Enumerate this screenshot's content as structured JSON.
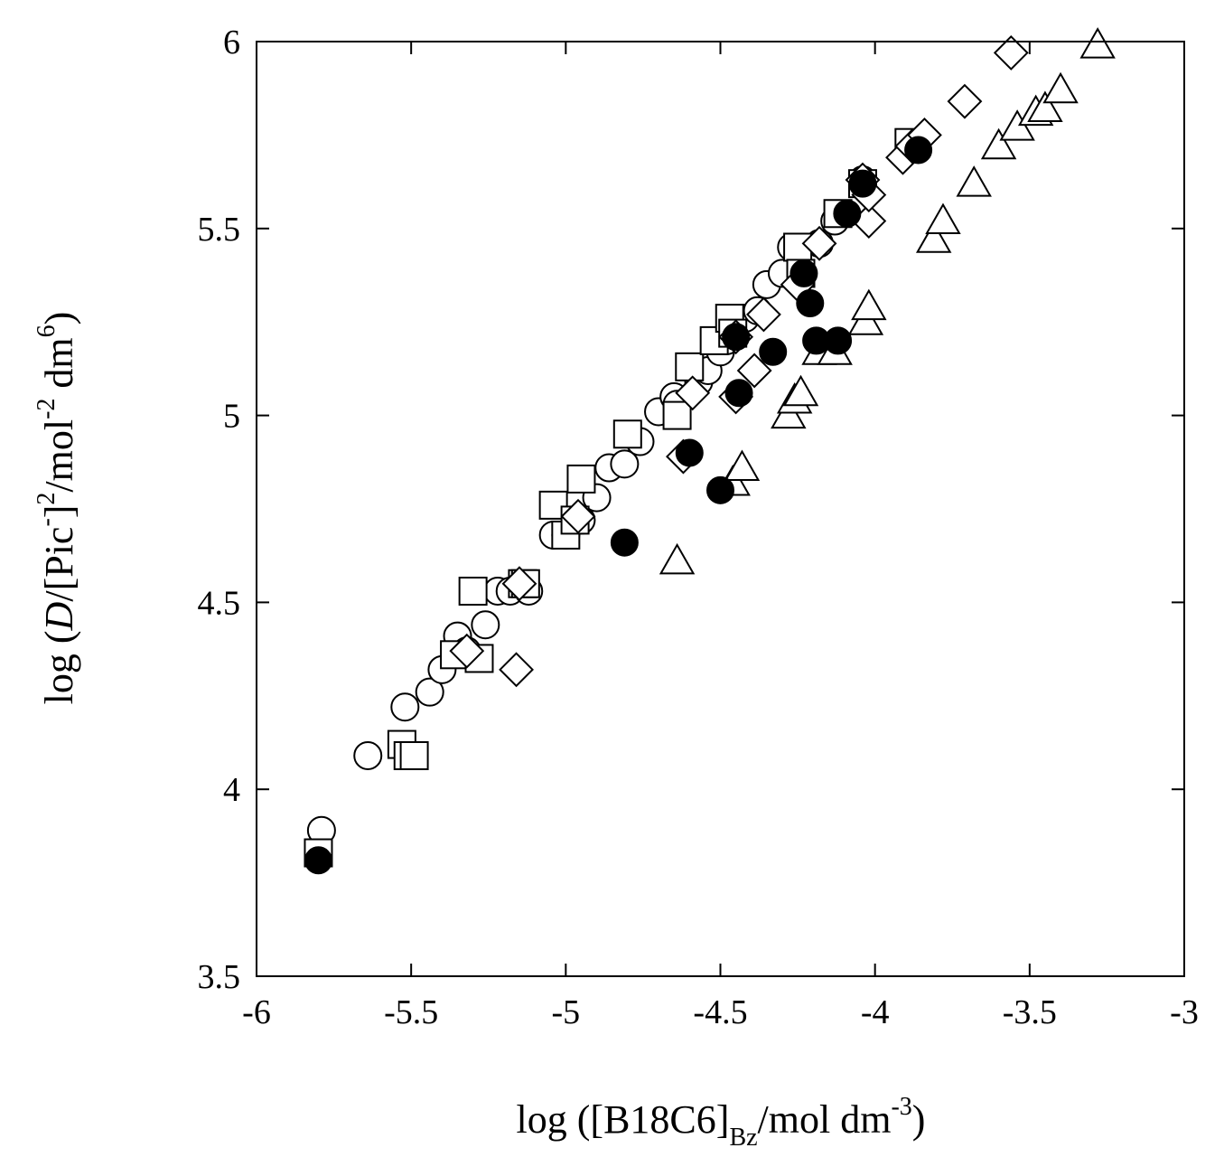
{
  "chart_data": {
    "type": "scatter",
    "title": "",
    "xlabel": {
      "prefix": "log ([B18C6]",
      "sub": "Bz",
      "middle": "/mol dm",
      "sup": "-3",
      "suffix": ")"
    },
    "ylabel": {
      "prefix": "log (",
      "italic": "D",
      "middle1": "/[Pic",
      "sup1": "-",
      "middle2": "]",
      "sup2": "2",
      "middle3": "/mol",
      "sup3": "-2",
      "middle4": " dm",
      "sup4": "6",
      "suffix": ")"
    },
    "xlim": [
      -6,
      -3
    ],
    "ylim": [
      3.5,
      6
    ],
    "xticks": [
      -6,
      -5.5,
      -5,
      -4.5,
      -4,
      -3.5,
      -3
    ],
    "xtick_labels": [
      "-6",
      "-5.5",
      "-5",
      "-4.5",
      "-4",
      "-3.5",
      "-3"
    ],
    "yticks": [
      3.5,
      4,
      4.5,
      5,
      5.5,
      6
    ],
    "ytick_labels": [
      "3.5",
      "4",
      "4.5",
      "5",
      "5.5",
      "6"
    ],
    "grid": false,
    "series": [
      {
        "marker": "open-circle",
        "points": [
          [
            -5.79,
            3.89
          ],
          [
            -5.64,
            4.09
          ],
          [
            -5.52,
            4.22
          ],
          [
            -5.44,
            4.26
          ],
          [
            -5.4,
            4.32
          ],
          [
            -5.35,
            4.41
          ],
          [
            -5.32,
            4.37
          ],
          [
            -5.26,
            4.44
          ],
          [
            -5.22,
            4.53
          ],
          [
            -5.18,
            4.53
          ],
          [
            -5.12,
            4.53
          ],
          [
            -5.04,
            4.68
          ],
          [
            -5.0,
            4.68
          ],
          [
            -4.95,
            4.72
          ],
          [
            -4.9,
            4.78
          ],
          [
            -4.86,
            4.86
          ],
          [
            -4.81,
            4.87
          ],
          [
            -4.76,
            4.93
          ],
          [
            -4.7,
            5.01
          ],
          [
            -4.65,
            5.05
          ],
          [
            -4.64,
            5.03
          ],
          [
            -4.57,
            5.09
          ],
          [
            -4.54,
            5.12
          ],
          [
            -4.5,
            5.17
          ],
          [
            -4.48,
            5.2
          ],
          [
            -4.42,
            5.26
          ],
          [
            -4.38,
            5.28
          ],
          [
            -4.35,
            5.35
          ],
          [
            -4.3,
            5.38
          ],
          [
            -4.27,
            5.45
          ],
          [
            -4.18,
            5.46
          ],
          [
            -4.13,
            5.52
          ],
          [
            -4.04,
            5.63
          ]
        ]
      },
      {
        "marker": "open-square",
        "points": [
          [
            -5.8,
            3.83
          ],
          [
            -5.53,
            4.12
          ],
          [
            -5.51,
            4.09
          ],
          [
            -5.49,
            4.09
          ],
          [
            -5.36,
            4.36
          ],
          [
            -5.3,
            4.53
          ],
          [
            -5.28,
            4.35
          ],
          [
            -5.14,
            4.55
          ],
          [
            -5.13,
            4.55
          ],
          [
            -5.04,
            4.76
          ],
          [
            -5.0,
            4.68
          ],
          [
            -4.97,
            4.72
          ],
          [
            -4.95,
            4.83
          ],
          [
            -4.8,
            4.95
          ],
          [
            -4.64,
            5.0
          ],
          [
            -4.6,
            5.13
          ],
          [
            -4.52,
            5.2
          ],
          [
            -4.47,
            5.26
          ],
          [
            -4.46,
            5.22
          ],
          [
            -4.25,
            5.45
          ],
          [
            -4.24,
            5.38
          ],
          [
            -4.12,
            5.54
          ],
          [
            -4.04,
            5.62
          ],
          [
            -3.89,
            5.73
          ]
        ]
      },
      {
        "marker": "open-diamond",
        "points": [
          [
            -5.32,
            4.37
          ],
          [
            -5.16,
            4.32
          ],
          [
            -5.15,
            4.55
          ],
          [
            -4.96,
            4.73
          ],
          [
            -4.62,
            4.89
          ],
          [
            -4.59,
            5.06
          ],
          [
            -4.45,
            5.05
          ],
          [
            -4.45,
            5.21
          ],
          [
            -4.39,
            5.12
          ],
          [
            -4.36,
            5.27
          ],
          [
            -4.25,
            5.35
          ],
          [
            -4.18,
            5.46
          ],
          [
            -4.02,
            5.52
          ],
          [
            -4.02,
            5.59
          ],
          [
            -4.04,
            5.63
          ],
          [
            -3.91,
            5.69
          ],
          [
            -3.88,
            5.72
          ],
          [
            -3.84,
            5.75
          ],
          [
            -3.71,
            5.84
          ],
          [
            -3.56,
            5.97
          ]
        ]
      },
      {
        "marker": "open-triangle",
        "points": [
          [
            -4.64,
            4.61
          ],
          [
            -4.46,
            4.82
          ],
          [
            -4.43,
            4.86
          ],
          [
            -4.28,
            5.0
          ],
          [
            -4.26,
            5.04
          ],
          [
            -4.24,
            5.06
          ],
          [
            -4.18,
            5.17
          ],
          [
            -4.13,
            5.17
          ],
          [
            -4.03,
            5.25
          ],
          [
            -4.02,
            5.29
          ],
          [
            -3.81,
            5.47
          ],
          [
            -3.78,
            5.52
          ],
          [
            -3.68,
            5.62
          ],
          [
            -3.6,
            5.72
          ],
          [
            -3.54,
            5.77
          ],
          [
            -3.48,
            5.81
          ],
          [
            -3.45,
            5.82
          ],
          [
            -3.4,
            5.87
          ],
          [
            -3.28,
            5.99
          ]
        ]
      },
      {
        "marker": "filled-circle",
        "points": [
          [
            -5.8,
            3.81
          ],
          [
            -4.81,
            4.66
          ],
          [
            -4.5,
            4.8
          ],
          [
            -4.6,
            4.9
          ],
          [
            -4.44,
            5.06
          ],
          [
            -4.33,
            5.17
          ],
          [
            -4.45,
            5.21
          ],
          [
            -4.19,
            5.2
          ],
          [
            -4.12,
            5.2
          ],
          [
            -4.21,
            5.3
          ],
          [
            -4.23,
            5.38
          ],
          [
            -4.09,
            5.54
          ],
          [
            -4.04,
            5.62
          ],
          [
            -3.86,
            5.71
          ]
        ]
      }
    ]
  }
}
